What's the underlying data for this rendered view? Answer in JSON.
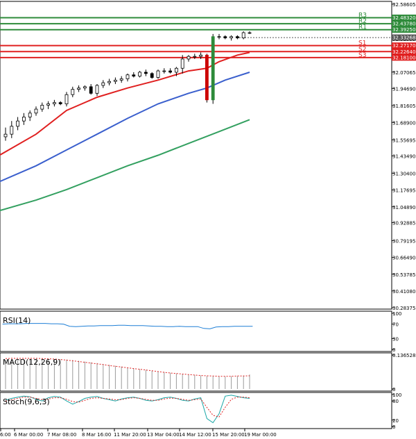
{
  "chart_data": {
    "type": "line",
    "title": "",
    "main_panel": {
      "kind": "candlestick",
      "price_ticks": [
        "32.58605",
        "32.45470",
        "32.32335",
        "32.20115",
        "32.07065",
        "31.94690",
        "31.81605",
        "31.68900",
        "31.55695",
        "31.43490",
        "31.30400",
        "31.17695",
        "31.04890",
        "30.92885",
        "30.79195",
        "30.66490",
        "30.53785",
        "30.41080",
        "30.28375"
      ],
      "candles": [
        {
          "o": 31.58,
          "h": 31.65,
          "l": 31.55,
          "c": 31.6
        },
        {
          "o": 31.6,
          "h": 31.7,
          "l": 31.57,
          "c": 31.66
        },
        {
          "o": 31.66,
          "h": 31.73,
          "l": 31.63,
          "c": 31.7
        },
        {
          "o": 31.7,
          "h": 31.76,
          "l": 31.67,
          "c": 31.73
        },
        {
          "o": 31.73,
          "h": 31.78,
          "l": 31.7,
          "c": 31.76
        },
        {
          "o": 31.76,
          "h": 31.81,
          "l": 31.74,
          "c": 31.79
        },
        {
          "o": 31.79,
          "h": 31.84,
          "l": 31.77,
          "c": 31.82
        },
        {
          "o": 31.82,
          "h": 31.85,
          "l": 31.79,
          "c": 31.83
        },
        {
          "o": 31.83,
          "h": 31.86,
          "l": 31.81,
          "c": 31.84
        },
        {
          "o": 31.84,
          "h": 31.85,
          "l": 31.82,
          "c": 31.83
        },
        {
          "o": 31.83,
          "h": 31.92,
          "l": 31.81,
          "c": 31.9
        },
        {
          "o": 31.9,
          "h": 31.96,
          "l": 31.88,
          "c": 31.94
        },
        {
          "o": 31.94,
          "h": 31.97,
          "l": 31.92,
          "c": 31.95
        },
        {
          "o": 31.95,
          "h": 31.97,
          "l": 31.93,
          "c": 31.96
        },
        {
          "o": 31.96,
          "h": 31.98,
          "l": 31.9,
          "c": 31.91
        },
        {
          "o": 31.91,
          "h": 31.98,
          "l": 31.89,
          "c": 31.97
        },
        {
          "o": 31.97,
          "h": 32.01,
          "l": 31.95,
          "c": 31.99
        },
        {
          "o": 31.99,
          "h": 32.02,
          "l": 31.97,
          "c": 32.0
        },
        {
          "o": 32.0,
          "h": 32.03,
          "l": 31.98,
          "c": 32.01
        },
        {
          "o": 32.01,
          "h": 32.04,
          "l": 31.99,
          "c": 32.02
        },
        {
          "o": 32.02,
          "h": 32.06,
          "l": 32.0,
          "c": 32.05
        },
        {
          "o": 32.05,
          "h": 32.07,
          "l": 32.03,
          "c": 32.04
        },
        {
          "o": 32.04,
          "h": 32.08,
          "l": 32.03,
          "c": 32.07
        },
        {
          "o": 32.07,
          "h": 32.09,
          "l": 32.04,
          "c": 32.06
        },
        {
          "o": 32.06,
          "h": 32.07,
          "l": 32.02,
          "c": 32.03
        },
        {
          "o": 32.03,
          "h": 32.09,
          "l": 32.02,
          "c": 32.08
        },
        {
          "o": 32.08,
          "h": 32.1,
          "l": 32.06,
          "c": 32.08
        },
        {
          "o": 32.08,
          "h": 32.1,
          "l": 32.06,
          "c": 32.07
        },
        {
          "o": 32.07,
          "h": 32.11,
          "l": 32.04,
          "c": 32.1
        },
        {
          "o": 32.1,
          "h": 32.2,
          "l": 32.06,
          "c": 32.17
        },
        {
          "o": 32.17,
          "h": 32.2,
          "l": 32.15,
          "c": 32.19
        },
        {
          "o": 32.19,
          "h": 32.21,
          "l": 32.17,
          "c": 32.19
        },
        {
          "o": 32.19,
          "h": 32.22,
          "l": 32.17,
          "c": 32.2
        },
        {
          "o": 32.2,
          "h": 32.21,
          "l": 31.84,
          "c": 31.86
        },
        {
          "o": 31.86,
          "h": 32.36,
          "l": 31.83,
          "c": 32.34
        },
        {
          "o": 32.34,
          "h": 32.36,
          "l": 32.32,
          "c": 32.34
        },
        {
          "o": 32.34,
          "h": 32.35,
          "l": 32.32,
          "c": 32.33
        },
        {
          "o": 32.33,
          "h": 32.35,
          "l": 32.31,
          "c": 32.34
        },
        {
          "o": 32.34,
          "h": 32.35,
          "l": 32.32,
          "c": 32.33
        },
        {
          "o": 32.33,
          "h": 32.38,
          "l": 32.32,
          "c": 32.37
        },
        {
          "o": 32.37,
          "h": 32.38,
          "l": 32.36,
          "c": 32.37
        }
      ],
      "levels": [
        {
          "label": "R3",
          "value": 32.4832,
          "price": "32.48320",
          "color": "#2e8b3a"
        },
        {
          "label": "R2",
          "value": 32.4378,
          "price": "32.43780",
          "color": "#2e8b3a"
        },
        {
          "label": "R1",
          "value": 32.3925,
          "price": "32.39250",
          "color": "#2e8b3a"
        },
        {
          "label": "",
          "value": 32.33268,
          "price": "32.33268",
          "color": "#555555"
        },
        {
          "label": "S1",
          "value": 32.2717,
          "price": "32.27170",
          "color": "#e02020"
        },
        {
          "label": "S2",
          "value": 32.2264,
          "price": "32.22640",
          "color": "#e02020"
        },
        {
          "label": "S3",
          "value": 32.181,
          "price": "32.18100",
          "color": "#e02020"
        }
      ],
      "moving_averages": [
        {
          "color": "#e02020",
          "points": [
            [
              -1,
              31.44
            ],
            [
              5,
              31.6
            ],
            [
              10,
              31.78
            ],
            [
              15,
              31.88
            ],
            [
              20,
              31.95
            ],
            [
              25,
              32.01
            ],
            [
              30,
              32.08
            ],
            [
              33,
              32.1
            ],
            [
              35,
              32.15
            ],
            [
              38,
              32.2
            ],
            [
              40,
              32.22
            ]
          ]
        },
        {
          "color": "#3a5fcd",
          "points": [
            [
              -1,
              31.24
            ],
            [
              5,
              31.36
            ],
            [
              10,
              31.48
            ],
            [
              15,
              31.6
            ],
            [
              20,
              31.72
            ],
            [
              25,
              31.83
            ],
            [
              30,
              31.91
            ],
            [
              33,
              31.95
            ],
            [
              36,
              32.01
            ],
            [
              40,
              32.07
            ]
          ]
        },
        {
          "color": "#33a060",
          "points": [
            [
              -1,
              31.02
            ],
            [
              5,
              31.1
            ],
            [
              10,
              31.18
            ],
            [
              15,
              31.27
            ],
            [
              20,
              31.36
            ],
            [
              25,
              31.44
            ],
            [
              30,
              31.53
            ],
            [
              35,
              31.62
            ],
            [
              40,
              31.71
            ]
          ]
        }
      ]
    },
    "x_ticks": [
      "6:00",
      "6 Mar 00:00",
      "7 Mar 08:00",
      "8 Mar 16:00",
      "11 Mar 20:00",
      "13 Mar 04:00",
      "14 Mar 12:00",
      "15 Mar 20:00",
      "19 Mar 00:00"
    ],
    "rsi": {
      "label": "RSI(14)",
      "ticks": [
        "100",
        "70",
        "30",
        "0"
      ],
      "values": [
        70,
        71,
        71,
        71,
        72,
        72,
        72,
        72,
        71,
        71,
        70,
        64,
        63,
        64,
        65,
        65,
        66,
        66,
        66,
        67,
        67,
        66,
        66,
        66,
        65,
        64,
        64,
        63,
        63,
        64,
        63,
        63,
        63,
        58,
        57,
        62,
        63,
        63,
        64,
        64,
        64,
        64
      ]
    },
    "macd": {
      "label": "MACD(12,26,9)",
      "ticks": [
        "0.136528",
        "0"
      ],
      "histogram": [
        0.117,
        0.118,
        0.12,
        0.121,
        0.122,
        0.122,
        0.122,
        0.121,
        0.12,
        0.119,
        0.118,
        0.116,
        0.113,
        0.11,
        0.107,
        0.104,
        0.1,
        0.097,
        0.093,
        0.09,
        0.086,
        0.083,
        0.08,
        0.077,
        0.074,
        0.071,
        0.068,
        0.065,
        0.062,
        0.06,
        0.058,
        0.056,
        0.054,
        0.052,
        0.051,
        0.05,
        0.05,
        0.051,
        0.052,
        0.054,
        0.058
      ],
      "signal": [
        0.122,
        0.123,
        0.123,
        0.123,
        0.123,
        0.123,
        0.122,
        0.121,
        0.12,
        0.118,
        0.116,
        0.113,
        0.11,
        0.107,
        0.104,
        0.101,
        0.098,
        0.094,
        0.091,
        0.088,
        0.085,
        0.082,
        0.079,
        0.076,
        0.073,
        0.07,
        0.067,
        0.064,
        0.062,
        0.06,
        0.058,
        0.056,
        0.054,
        0.053,
        0.052,
        0.051,
        0.051,
        0.051,
        0.052,
        0.052,
        0.053
      ]
    },
    "stoch": {
      "label": "Stoch(9,6,3)",
      "ticks": [
        "100",
        "80",
        "20",
        "0"
      ],
      "main": [
        82,
        88,
        92,
        95,
        93,
        85,
        80,
        90,
        94,
        92,
        80,
        70,
        78,
        88,
        92,
        94,
        88,
        84,
        80,
        86,
        90,
        92,
        88,
        82,
        80,
        84,
        90,
        92,
        88,
        82,
        80,
        86,
        90,
        25,
        12,
        40,
        95,
        98,
        94,
        90,
        88
      ],
      "signal": [
        80,
        84,
        88,
        92,
        92,
        88,
        84,
        86,
        90,
        90,
        85,
        78,
        76,
        82,
        88,
        90,
        88,
        86,
        84,
        84,
        88,
        90,
        88,
        85,
        82,
        82,
        86,
        89,
        88,
        85,
        82,
        84,
        86,
        60,
        35,
        30,
        60,
        85,
        92,
        92,
        90
      ]
    }
  }
}
